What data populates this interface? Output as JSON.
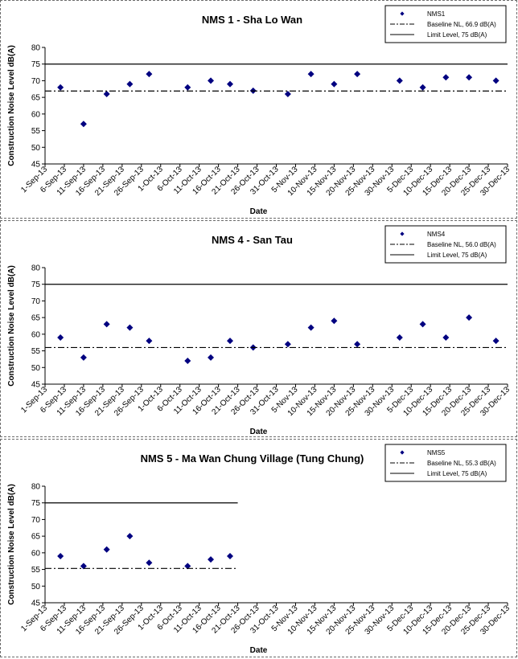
{
  "chart_data": [
    {
      "type": "scatter",
      "title": "NMS 1 - Sha Lo Wan",
      "xlabel": "Date",
      "ylabel": "Construction Noise Level  dB(A)",
      "ylim": [
        45,
        80
      ],
      "yticks": [
        45,
        50,
        55,
        60,
        65,
        70,
        75,
        80
      ],
      "grid": false,
      "legend_position": "top-right",
      "x_tick_labels": [
        "1-Sep-13",
        "6-Sep-13",
        "11-Sep-13",
        "16-Sep-13",
        "21-Sep-13",
        "26-Sep-13",
        "1-Oct-13",
        "6-Oct-13",
        "11-Oct-13",
        "16-Oct-13",
        "21-Oct-13",
        "26-Oct-13",
        "31-Oct-13",
        "5-Nov-13",
        "10-Nov-13",
        "15-Nov-13",
        "20-Nov-13",
        "25-Nov-13",
        "30-Nov-13",
        "5-Dec-13",
        "10-Dec-13",
        "15-Dec-13",
        "20-Dec-13",
        "25-Dec-13",
        "30-Dec-13"
      ],
      "series": [
        {
          "name": "NMS1",
          "kind": "points",
          "color": "#000080",
          "points": [
            [
              "5-Sep-13",
              68
            ],
            [
              "11-Sep-13",
              57
            ],
            [
              "17-Sep-13",
              66
            ],
            [
              "23-Sep-13",
              69
            ],
            [
              "28-Sep-13",
              72
            ],
            [
              "8-Oct-13",
              68
            ],
            [
              "14-Oct-13",
              70
            ],
            [
              "19-Oct-13",
              69
            ],
            [
              "25-Oct-13",
              67
            ],
            [
              "3-Nov-13",
              66
            ],
            [
              "9-Nov-13",
              72
            ],
            [
              "15-Nov-13",
              69
            ],
            [
              "21-Nov-13",
              72
            ],
            [
              "2-Dec-13",
              70
            ],
            [
              "8-Dec-13",
              68
            ],
            [
              "14-Dec-13",
              71
            ],
            [
              "20-Dec-13",
              71
            ],
            [
              "27-Dec-13",
              70
            ]
          ]
        },
        {
          "name": "Baseline NL, 66.9 dB(A)",
          "kind": "hline",
          "value": 66.9,
          "style": "dash-dot",
          "color": "#000000",
          "x_start": "1-Sep-13",
          "x_end": "30-Dec-13"
        },
        {
          "name": "Limit Level, 75 dB(A)",
          "kind": "hline",
          "value": 75,
          "style": "solid",
          "color": "#000000",
          "x_start": "1-Sep-13",
          "x_end": "30-Dec-13"
        }
      ]
    },
    {
      "type": "scatter",
      "title": "NMS 4 - San Tau",
      "xlabel": "Date",
      "ylabel": "Construction Noise Level  dB(A)",
      "ylim": [
        45,
        80
      ],
      "yticks": [
        45,
        50,
        55,
        60,
        65,
        70,
        75,
        80
      ],
      "grid": false,
      "legend_position": "top-right",
      "x_tick_labels": [
        "1-Sep-13",
        "6-Sep-13",
        "11-Sep-13",
        "16-Sep-13",
        "21-Sep-13",
        "26-Sep-13",
        "1-Oct-13",
        "6-Oct-13",
        "11-Oct-13",
        "16-Oct-13",
        "21-Oct-13",
        "26-Oct-13",
        "31-Oct-13",
        "5-Nov-13",
        "10-Nov-13",
        "15-Nov-13",
        "20-Nov-13",
        "25-Nov-13",
        "30-Nov-13",
        "5-Dec-13",
        "10-Dec-13",
        "15-Dec-13",
        "20-Dec-13",
        "25-Dec-13",
        "30-Dec-13"
      ],
      "series": [
        {
          "name": "NMS4",
          "kind": "points",
          "color": "#000080",
          "points": [
            [
              "5-Sep-13",
              59
            ],
            [
              "11-Sep-13",
              53
            ],
            [
              "17-Sep-13",
              63
            ],
            [
              "23-Sep-13",
              62
            ],
            [
              "28-Sep-13",
              58
            ],
            [
              "8-Oct-13",
              52
            ],
            [
              "14-Oct-13",
              53
            ],
            [
              "19-Oct-13",
              58
            ],
            [
              "25-Oct-13",
              56
            ],
            [
              "3-Nov-13",
              57
            ],
            [
              "9-Nov-13",
              62
            ],
            [
              "15-Nov-13",
              64
            ],
            [
              "21-Nov-13",
              57
            ],
            [
              "2-Dec-13",
              59
            ],
            [
              "8-Dec-13",
              63
            ],
            [
              "14-Dec-13",
              59
            ],
            [
              "20-Dec-13",
              65
            ],
            [
              "27-Dec-13",
              58
            ]
          ]
        },
        {
          "name": "Baseline NL, 56.0 dB(A)",
          "kind": "hline",
          "value": 56.0,
          "style": "dash-dot",
          "color": "#000000",
          "x_start": "1-Sep-13",
          "x_end": "30-Dec-13"
        },
        {
          "name": "Limit Level, 75 dB(A)",
          "kind": "hline",
          "value": 75,
          "style": "solid",
          "color": "#000000",
          "x_start": "1-Sep-13",
          "x_end": "30-Dec-13"
        }
      ]
    },
    {
      "type": "scatter",
      "title": "NMS 5 - Ma Wan Chung Village (Tung Chung)",
      "xlabel": "Date",
      "ylabel": "Construction Noise Level  dB(A)",
      "ylim": [
        45,
        80
      ],
      "yticks": [
        45,
        50,
        55,
        60,
        65,
        70,
        75,
        80
      ],
      "grid": false,
      "legend_position": "top-right",
      "x_tick_labels": [
        "1-Sep-13",
        "6-Sep-13",
        "11-Sep-13",
        "16-Sep-13",
        "21-Sep-13",
        "26-Sep-13",
        "1-Oct-13",
        "6-Oct-13",
        "11-Oct-13",
        "16-Oct-13",
        "21-Oct-13",
        "26-Oct-13",
        "31-Oct-13",
        "5-Nov-13",
        "10-Nov-13",
        "15-Nov-13",
        "20-Nov-13",
        "25-Nov-13",
        "30-Nov-13",
        "5-Dec-13",
        "10-Dec-13",
        "15-Dec-13",
        "20-Dec-13",
        "25-Dec-13",
        "30-Dec-13"
      ],
      "series": [
        {
          "name": "NMS5",
          "kind": "points",
          "color": "#000080",
          "points": [
            [
              "5-Sep-13",
              59
            ],
            [
              "11-Sep-13",
              56
            ],
            [
              "17-Sep-13",
              61
            ],
            [
              "23-Sep-13",
              65
            ],
            [
              "28-Sep-13",
              57
            ],
            [
              "8-Oct-13",
              56
            ],
            [
              "14-Oct-13",
              58
            ],
            [
              "19-Oct-13",
              59
            ]
          ]
        },
        {
          "name": "Baseline NL, 55.3 dB(A)",
          "kind": "hline",
          "value": 55.3,
          "style": "dash-dot",
          "color": "#000000",
          "x_start": "1-Sep-13",
          "x_end": "21-Oct-13"
        },
        {
          "name": "Limit Level, 75 dB(A)",
          "kind": "hline",
          "value": 75,
          "style": "solid",
          "color": "#000000",
          "x_start": "1-Sep-13",
          "x_end": "21-Oct-13"
        }
      ]
    }
  ]
}
